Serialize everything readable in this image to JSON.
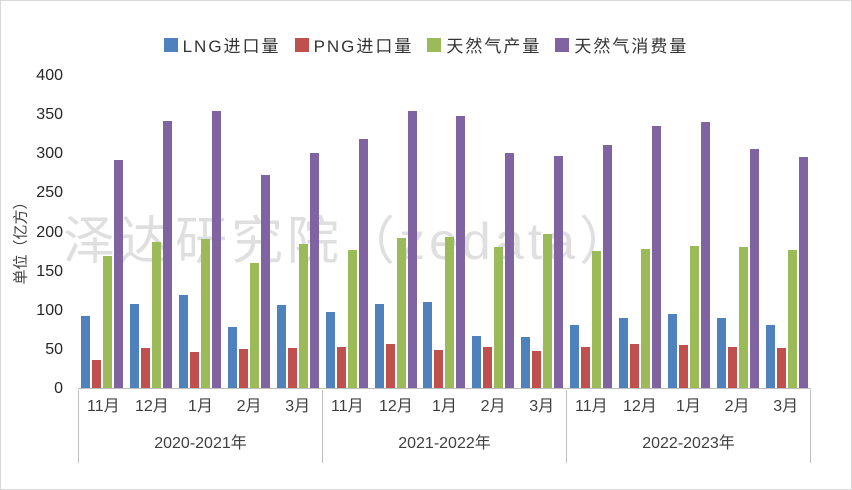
{
  "chart_data": {
    "type": "bar",
    "title": "",
    "ylabel": "单位（亿方）",
    "xlabel": "",
    "ylim": [
      0,
      400
    ],
    "yticks": [
      400,
      350,
      300,
      250,
      200,
      150,
      100,
      50,
      0
    ],
    "grid": false,
    "legend_position": "top",
    "watermark": "泽达研究院（zedata）",
    "axis_color": "#BFBFBF",
    "text_color": "#404040",
    "groups": [
      {
        "label": "2020-2021年",
        "months": [
          "11月",
          "12月",
          "1月",
          "2月",
          "3月"
        ]
      },
      {
        "label": "2021-2022年",
        "months": [
          "11月",
          "12月",
          "1月",
          "2月",
          "3月"
        ]
      },
      {
        "label": "2022-2023年",
        "months": [
          "11月",
          "12月",
          "1月",
          "2月",
          "3月"
        ]
      }
    ],
    "series": [
      {
        "name": "LNG进口量",
        "color": "#4F81BD",
        "values": [
          [
            92,
            107,
            119,
            78,
            106
          ],
          [
            97,
            107,
            110,
            67,
            65
          ],
          [
            81,
            89,
            95,
            89,
            80
          ]
        ]
      },
      {
        "name": "PNG进口量",
        "color": "#C0504D",
        "values": [
          [
            36,
            51,
            46,
            50,
            51
          ],
          [
            53,
            56,
            48,
            52,
            47
          ],
          [
            53,
            56,
            55,
            53,
            51
          ]
        ]
      },
      {
        "name": "天然气产量",
        "color": "#9BBB59",
        "values": [
          [
            169,
            187,
            190,
            160,
            184
          ],
          [
            176,
            192,
            193,
            180,
            197
          ],
          [
            175,
            178,
            182,
            180,
            176
          ]
        ]
      },
      {
        "name": "天然气消费量",
        "color": "#8064A2",
        "values": [
          [
            291,
            341,
            354,
            272,
            300
          ],
          [
            318,
            354,
            347,
            300,
            297
          ],
          [
            311,
            335,
            340,
            305,
            295
          ]
        ]
      }
    ]
  }
}
